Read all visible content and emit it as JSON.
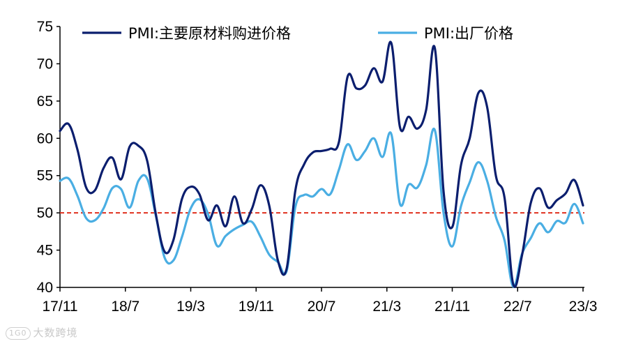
{
  "chart_data": {
    "type": "line",
    "title": "",
    "xlabel": "",
    "ylabel": "",
    "ylim": [
      40,
      75
    ],
    "yticks": [
      40,
      45,
      50,
      55,
      60,
      65,
      70,
      75
    ],
    "xlim": [
      0,
      64
    ],
    "xticks": [
      {
        "label": "17/11",
        "index": 0
      },
      {
        "label": "18/7",
        "index": 8
      },
      {
        "label": "19/3",
        "index": 16
      },
      {
        "label": "19/11",
        "index": 24
      },
      {
        "label": "20/7",
        "index": 32
      },
      {
        "label": "21/3",
        "index": 40
      },
      {
        "label": "21/11",
        "index": 48
      },
      {
        "label": "22/7",
        "index": 56
      },
      {
        "label": "23/3",
        "index": 64
      }
    ],
    "reference_line": {
      "value": 50,
      "color": "#e0301e",
      "style": "dashed"
    },
    "legend_position": "top",
    "series": [
      {
        "name": "PMI:主要原材料购进价格",
        "color": "#0b1e6e",
        "values": [
          61.0,
          61.9,
          58.5,
          53.4,
          53.0,
          56.0,
          57.4,
          54.5,
          58.9,
          59.0,
          57.0,
          49.8,
          44.8,
          46.3,
          51.9,
          53.5,
          52.5,
          49.0,
          51.0,
          48.2,
          52.2,
          48.6,
          50.5,
          53.7,
          51.0,
          43.6,
          42.5,
          53.0,
          56.5,
          58.1,
          58.3,
          58.6,
          59.5,
          68.3,
          66.7,
          67.1,
          69.4,
          67.6,
          72.8,
          61.5,
          62.9,
          61.3,
          63.8,
          72.1,
          52.9,
          48.1,
          56.4,
          60.0,
          66.1,
          64.2,
          55.0,
          52.0,
          40.4,
          44.3,
          51.3,
          53.3,
          50.7,
          51.7,
          52.6,
          54.4,
          51.0
        ]
      },
      {
        "name": "PMI:出厂价格",
        "color": "#4aaee3",
        "values": [
          54.3,
          54.6,
          52.3,
          49.3,
          49.0,
          50.6,
          53.3,
          53.2,
          50.7,
          54.3,
          54.6,
          49.6,
          44.0,
          43.6,
          46.8,
          50.6,
          51.8,
          49.8,
          45.6,
          46.9,
          47.8,
          48.4,
          48.8,
          46.8,
          44.4,
          43.4,
          42.2,
          50.8,
          52.4,
          52.2,
          53.2,
          52.5,
          55.8,
          59.2,
          57.1,
          58.3,
          60.0,
          57.5,
          60.6,
          51.2,
          53.8,
          53.4,
          56.4,
          61.1,
          50.0,
          45.5,
          50.9,
          54.1,
          56.8,
          54.3,
          49.5,
          46.3,
          40.1,
          44.5,
          46.6,
          48.6,
          47.4,
          48.9,
          48.7,
          51.2,
          48.6
        ]
      }
    ]
  },
  "watermark_text": "大数跨境",
  "watermark_logo": "1G0"
}
